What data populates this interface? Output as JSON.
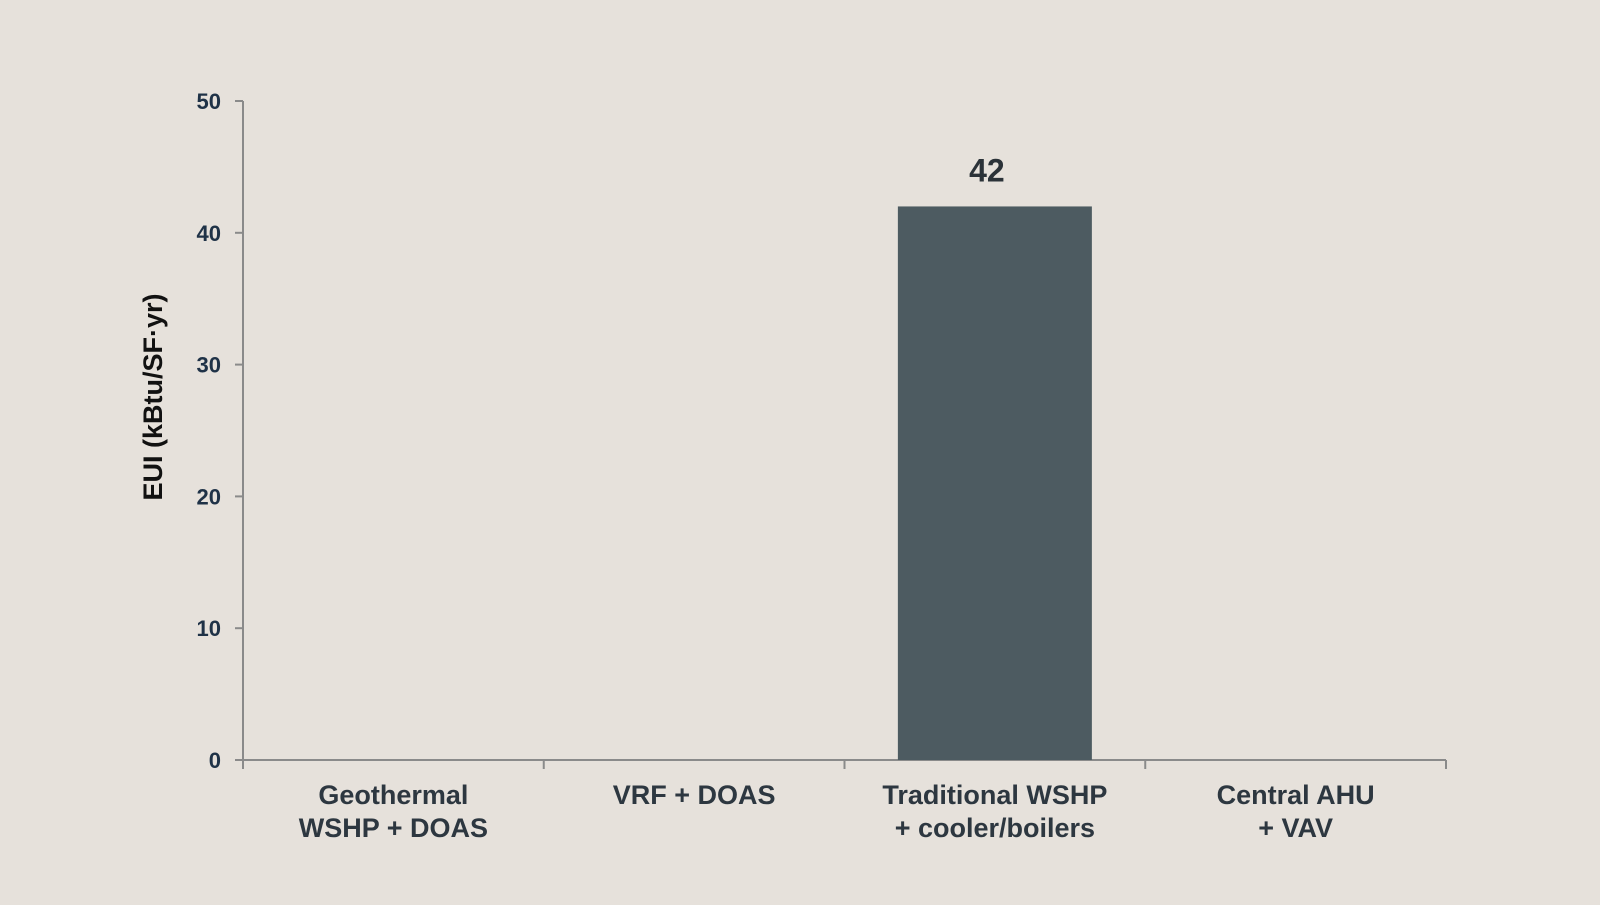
{
  "chart_data": {
    "type": "bar",
    "title": "",
    "xlabel": "",
    "ylabel": "EUI (kBtu/SF·yr)",
    "categories": [
      [
        "Geothermal",
        "WSHP + DOAS"
      ],
      [
        "VRF + DOAS"
      ],
      [
        "Traditional WSHP",
        "+ cooler/boilers"
      ],
      [
        "Central AHU",
        "+ VAV"
      ]
    ],
    "values": [
      null,
      null,
      42,
      null
    ],
    "data_labels": [
      "",
      "",
      "42",
      ""
    ],
    "ylim": [
      0,
      50
    ],
    "yticks": [
      0,
      10,
      20,
      30,
      40,
      50
    ],
    "grid": false,
    "legend": "none",
    "colors": {
      "background": "#e6e1db",
      "bar": "#4d5b61",
      "axis": "#8a8a8a",
      "ytick_text": "#1f3247",
      "xtick_text": "#2d3740",
      "ylabel_text": "#111111",
      "data_label_text": "#2b3238"
    }
  }
}
